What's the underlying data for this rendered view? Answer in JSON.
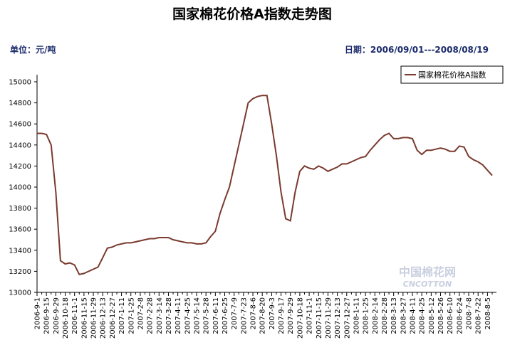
{
  "chart_data": {
    "type": "line",
    "title": "国家棉花价格A指数走势图",
    "unit_label": "单位：元/吨",
    "date_label": "日期：2006/09/01---2008/08/19",
    "watermark": [
      "中国棉花网",
      "CNCOTTON"
    ],
    "legend": "upper right",
    "grid": false,
    "categories": [
      "2006-9-1",
      null,
      "2006-9-15",
      null,
      "2006-9-29",
      null,
      "2006-10-18",
      null,
      "2006-11-1",
      null,
      "2006-11-15",
      null,
      "2006-11-29",
      null,
      "2006-12-13",
      null,
      "2006-12-27",
      null,
      "2007-1-11",
      null,
      "2007-1-25",
      null,
      "2007-2-8",
      null,
      "2007-2-28",
      null,
      "2007-3-14",
      null,
      "2007-3-28",
      null,
      "2007-4-11",
      null,
      "2007-4-25",
      null,
      "2007-5-14",
      null,
      "2007-5-28",
      null,
      "2007-6-11",
      null,
      "2007-6-25",
      null,
      "2007-7-9",
      null,
      "2007-7-23",
      null,
      "2007-8-6",
      null,
      "2007-8-20",
      null,
      "2007-9-3",
      null,
      "2007-9-17",
      null,
      "2007-9-29",
      null,
      "2007-10-18",
      null,
      "2007-11-1",
      null,
      "2007-11-15",
      null,
      "2007-11-29",
      null,
      "2007-12-13",
      null,
      "2007-12-27",
      null,
      "2008-1-11",
      null,
      "2008-1-25",
      null,
      "2008-2-14",
      null,
      "2008-2-28",
      null,
      "2008-3-13",
      null,
      "2008-3-27",
      null,
      "2008-4-11",
      null,
      "2008-4-25",
      null,
      "2008-5-12",
      null,
      "2008-5-26",
      null,
      "2008-6-10",
      null,
      "2008-6-24",
      null,
      "2008-7-8",
      null,
      "2008-7-22",
      null,
      "2008-8-5",
      null
    ],
    "series": [
      {
        "name": "国家棉花价格A指数",
        "color": "#7a3a2e",
        "values": [
          14510,
          14510,
          14500,
          14400,
          13950,
          13300,
          13270,
          13280,
          13260,
          13170,
          13180,
          13200,
          13220,
          13240,
          13330,
          13420,
          13430,
          13450,
          13460,
          13470,
          13470,
          13480,
          13490,
          13500,
          13510,
          13510,
          13520,
          13520,
          13520,
          13500,
          13490,
          13480,
          13470,
          13470,
          13460,
          13460,
          13470,
          13530,
          13580,
          13750,
          13880,
          14000,
          14200,
          14400,
          14600,
          14800,
          14840,
          14860,
          14870,
          14870,
          14600,
          14300,
          13950,
          13700,
          13680,
          13950,
          14150,
          14200,
          14180,
          14170,
          14200,
          14180,
          14150,
          14170,
          14190,
          14220,
          14220,
          14240,
          14260,
          14280,
          14290,
          14350,
          14400,
          14450,
          14490,
          14510,
          14460,
          14460,
          14470,
          14470,
          14460,
          14350,
          14310,
          14350,
          14350,
          14360,
          14370,
          14360,
          14340,
          14340,
          14390,
          14380,
          14290,
          14260,
          14240,
          14210,
          14160,
          14110
        ]
      }
    ],
    "ylim": [
      13000,
      15000
    ],
    "yticks": [
      13000,
      13200,
      13400,
      13600,
      13800,
      14000,
      14200,
      14400,
      14600,
      14800,
      15000
    ]
  }
}
